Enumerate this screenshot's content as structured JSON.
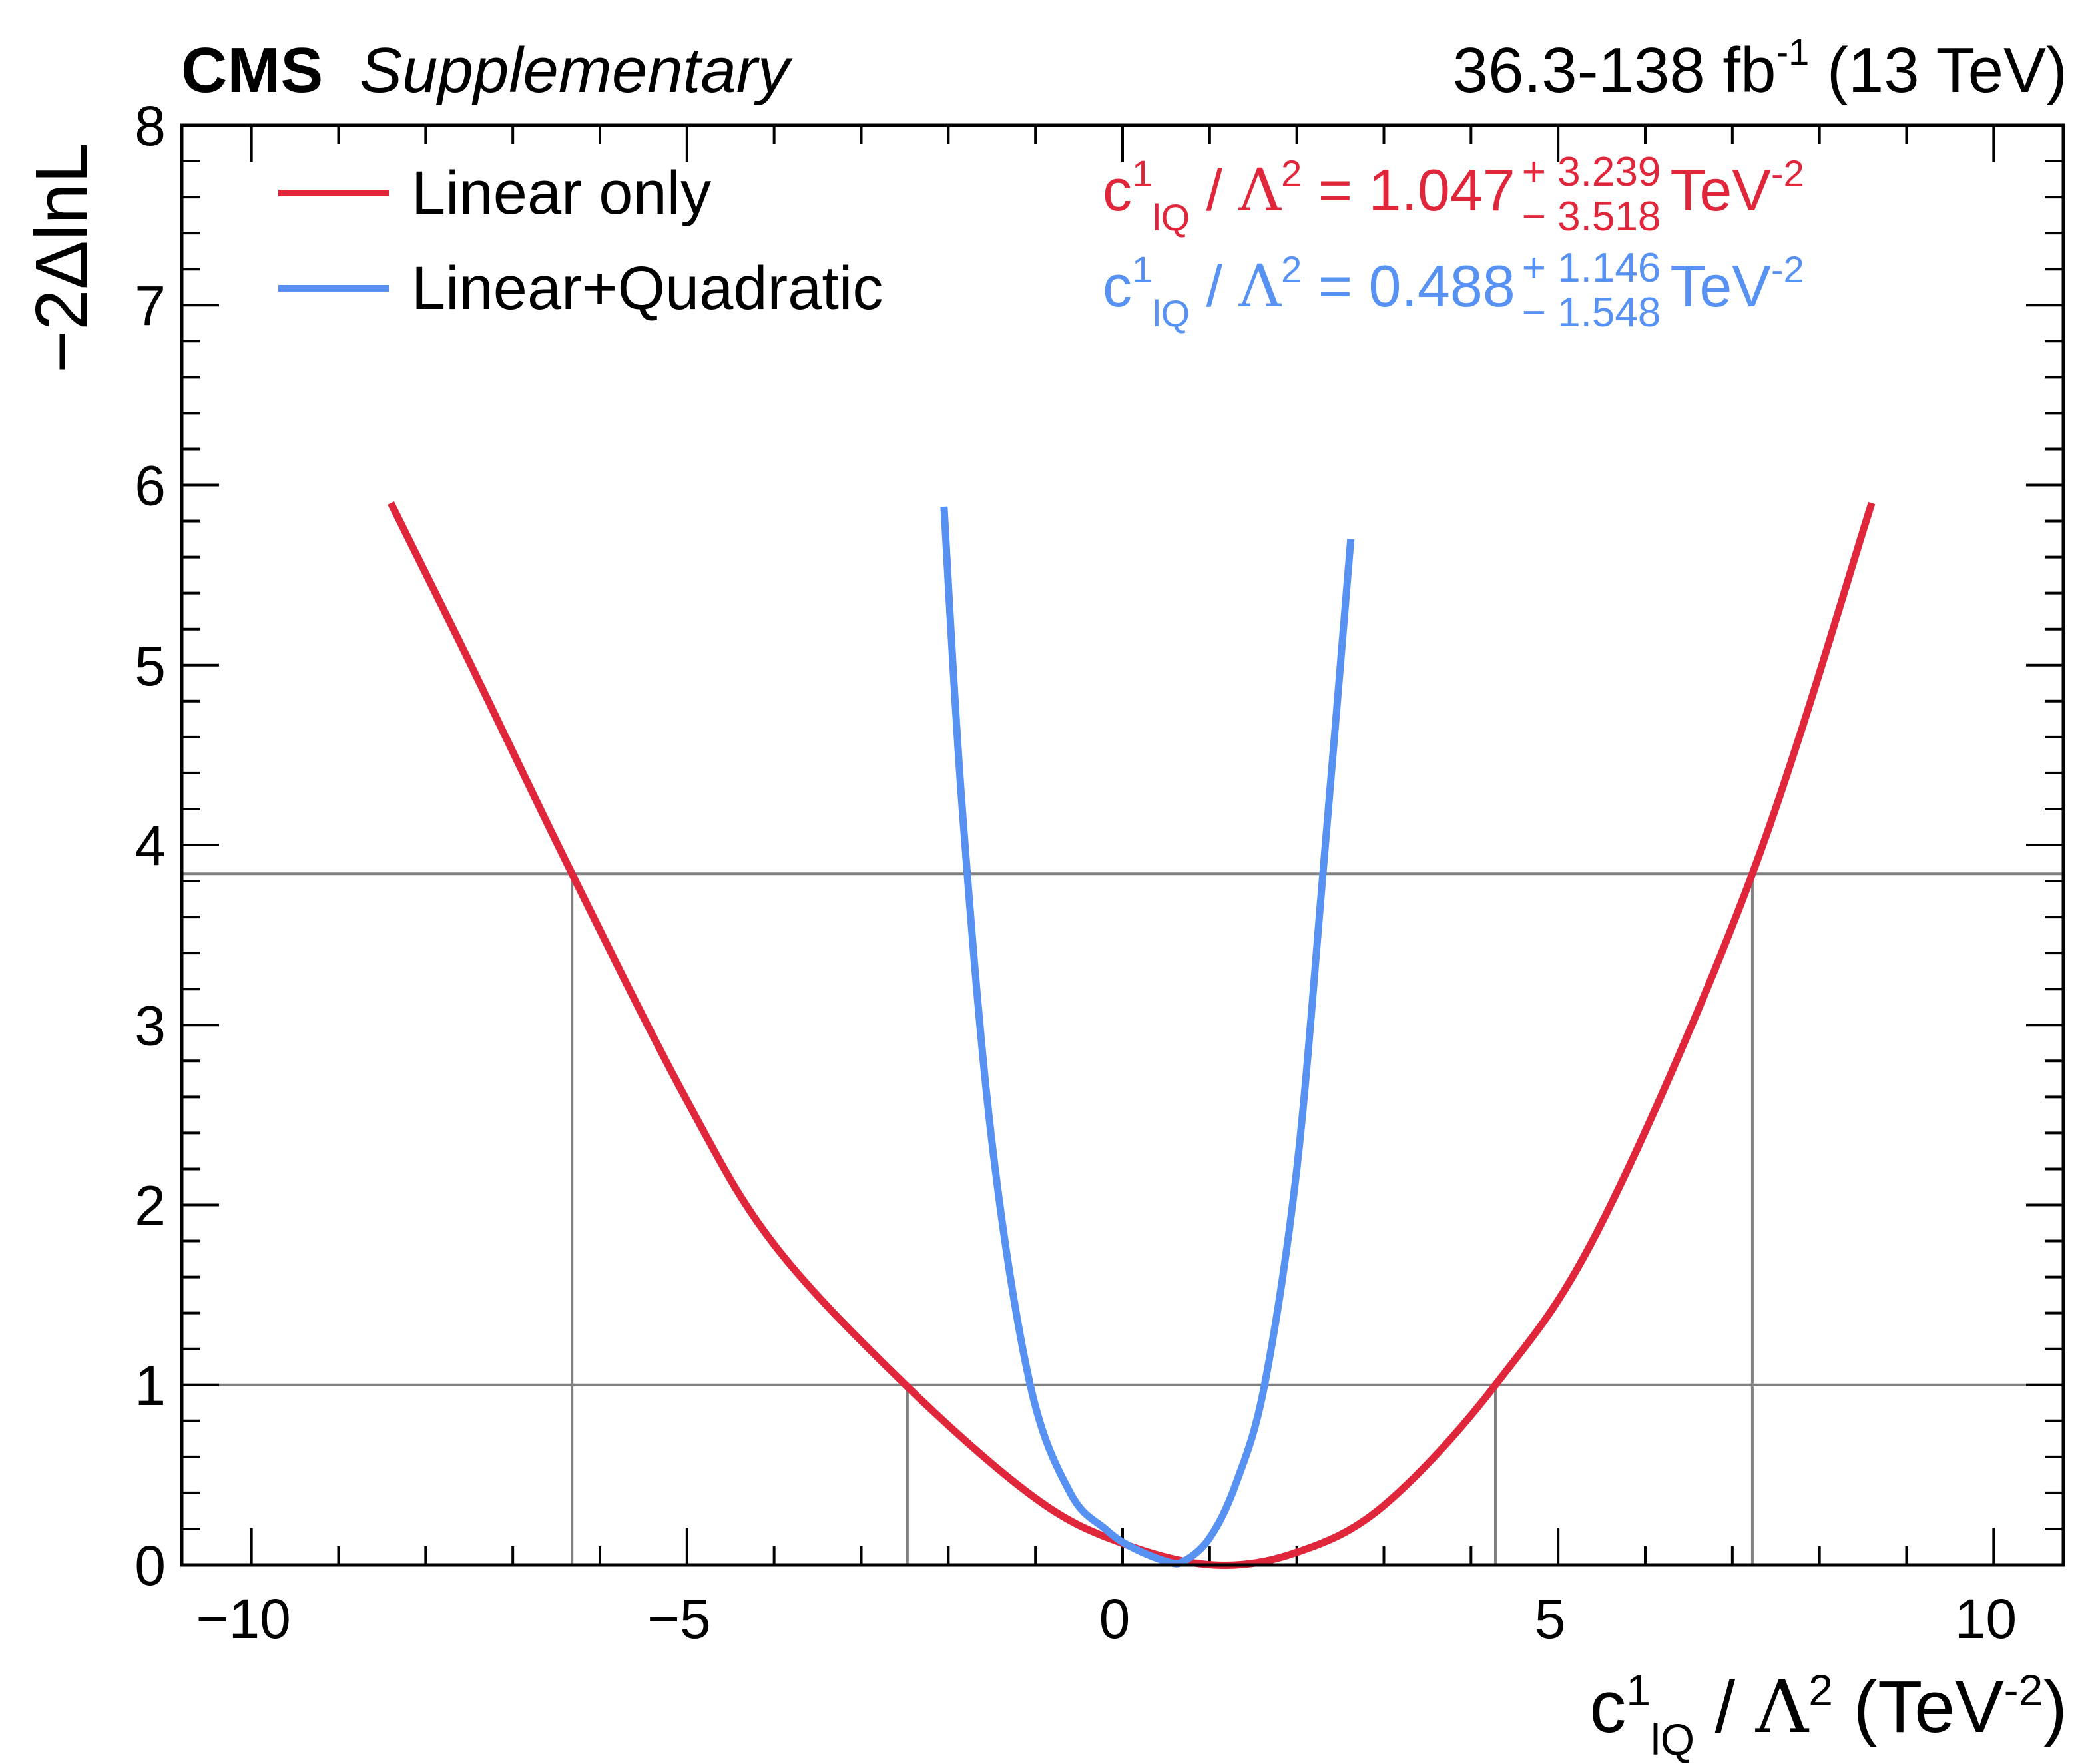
{
  "header": {
    "experiment": "CMS",
    "label": "Supplementary",
    "lumi_text": "36.3-138 fb",
    "lumi_exp": "-1",
    "energy": "(13 TeV)"
  },
  "colors": {
    "linear": "#e0263a",
    "quadratic": "#5791f2",
    "reference": "#808080",
    "frame": "#000000"
  },
  "legend": [
    {
      "label": "Linear only",
      "color": "#e0263a"
    },
    {
      "label": "Linear+Quadratic",
      "color": "#5791f2"
    }
  ],
  "fits": {
    "linear": {
      "coef": "c",
      "coef_sup": "1",
      "coef_sub": "lQ",
      "sep": "/",
      "lambda": "Λ",
      "lambda_sup": "2",
      "eq": "=",
      "value": "1.047",
      "err_up": "+ 3.239",
      "err_down": "− 3.518",
      "unit": "TeV",
      "unit_sup": "-2"
    },
    "quadratic": {
      "coef": "c",
      "coef_sup": "1",
      "coef_sub": "lQ",
      "sep": "/",
      "lambda": "Λ",
      "lambda_sup": "2",
      "eq": "=",
      "value": "0.488",
      "err_up": "+ 1.146",
      "err_down": "− 1.548",
      "unit": "TeV",
      "unit_sup": "-2"
    }
  },
  "axes": {
    "x_title": {
      "coef": "c",
      "sup": "1",
      "sub": "lQ",
      "sep": "/",
      "lambda": "Λ",
      "lambda_sup": "2",
      "unit": "(TeV",
      "unit_sup": "-2",
      "close": ")"
    },
    "y_title": "−2ΔlnL"
  },
  "chart_data": {
    "type": "line",
    "title": "",
    "xlabel": "c_lQ^1 / Λ^2 (TeV^-2)",
    "ylabel": "−2ΔlnL",
    "xlim": [
      -10.8,
      10.8
    ],
    "ylim": [
      0,
      8
    ],
    "x_ticks": [
      -10,
      -5,
      0,
      5,
      10
    ],
    "x_tick_labels": [
      "−10",
      "−5",
      "0",
      "5",
      "10"
    ],
    "y_ticks": [
      0,
      1,
      2,
      3,
      4,
      5,
      6,
      7,
      8
    ],
    "y_tick_labels": [
      "0",
      "1",
      "2",
      "3",
      "4",
      "5",
      "6",
      "7",
      "8"
    ],
    "series": [
      {
        "name": "Linear only",
        "best_fit": 1.047,
        "x": [
          -8.4,
          -7.5,
          -6.32,
          -5.0,
          -4.0,
          -2.47,
          -1.0,
          0.0,
          1.047,
          2.0,
          3.0,
          4.28,
          5.5,
          7.23,
          8.6
        ],
        "y": [
          5.9,
          5.02,
          3.84,
          2.58,
          1.78,
          0.99,
          0.37,
          0.12,
          0.0,
          0.07,
          0.33,
          1.0,
          1.9,
          3.84,
          5.9
        ]
      },
      {
        "name": "Linear+Quadratic",
        "best_fit": 0.488,
        "x": [
          -2.05,
          -1.84,
          -1.5,
          -1.06,
          -0.6,
          -0.2,
          0.1,
          0.5,
          0.7,
          1.0,
          1.3,
          1.63,
          2.0,
          2.3,
          2.62
        ],
        "y": [
          5.88,
          4.2,
          2.35,
          1.0,
          0.4,
          0.2,
          0.1,
          0.02,
          0.02,
          0.15,
          0.45,
          1.0,
          2.2,
          3.84,
          5.7
        ]
      }
    ],
    "reference_lines": [
      {
        "y": 1.0,
        "x_low_linear": -2.47,
        "x_high_linear": 4.28
      },
      {
        "y": 3.84,
        "x_low_linear": -6.32,
        "x_high_linear": 7.23
      }
    ],
    "grid": false,
    "legend_position": "top-left"
  }
}
